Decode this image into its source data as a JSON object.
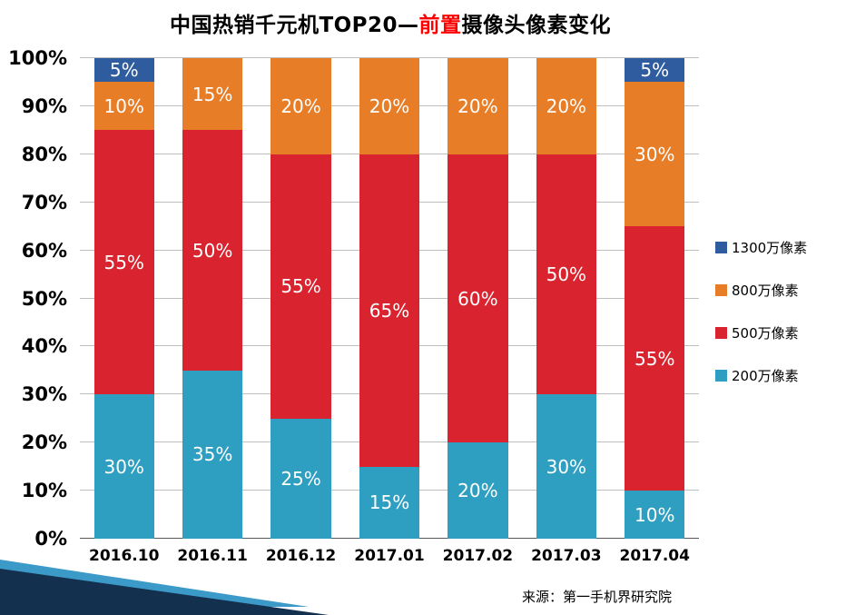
{
  "title": {
    "prefix": "中国热销千元机TOP20—",
    "highlight": "前置",
    "suffix": "摄像头像素变化"
  },
  "source": "来源：第一手机界研究院",
  "chart_data": {
    "type": "bar",
    "stacked": true,
    "percent_stacked": true,
    "title": "中国热销千元机TOP20—前置摄像头像素变化",
    "categories": [
      "2016.10",
      "2016.11",
      "2016.12",
      "2017.01",
      "2017.02",
      "2017.03",
      "2017.04"
    ],
    "series": [
      {
        "name": "200万像素",
        "color": "#2e9fc0",
        "values": [
          30,
          35,
          25,
          15,
          20,
          30,
          10
        ]
      },
      {
        "name": "500万像素",
        "color": "#d9232e",
        "values": [
          55,
          50,
          55,
          65,
          60,
          50,
          55
        ]
      },
      {
        "name": "800万像素",
        "color": "#e87d27",
        "values": [
          10,
          15,
          20,
          20,
          20,
          20,
          30
        ]
      },
      {
        "name": "1300万像素",
        "color": "#2e5c9e",
        "values": [
          5,
          0,
          0,
          0,
          0,
          0,
          5
        ]
      }
    ],
    "xlabel": "",
    "ylabel": "",
    "ylim": [
      0,
      100
    ],
    "ytick_step": 10,
    "ytick_format": "percent",
    "grid": true,
    "legend_position": "right",
    "legend_order_top_to_bottom": [
      "1300万像素",
      "800万像素",
      "500万像素",
      "200万像素"
    ],
    "value_label_color": "#ffffff",
    "value_label_format": "percent"
  }
}
